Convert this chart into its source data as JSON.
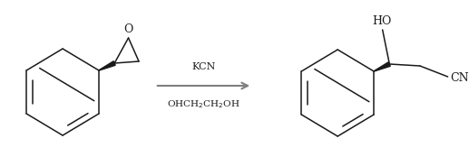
{
  "background_color": "#ffffff",
  "arrow_color": "#7f7f7f",
  "line_color": "#1a1a1a",
  "reagent_line1": "KCN",
  "reagent_line2": "OHCH$_2$CH$_2$OH",
  "label_HO": "HO",
  "label_CN": "CN",
  "label_O": "O",
  "fig_width": 5.17,
  "fig_height": 1.64,
  "dpi": 100
}
